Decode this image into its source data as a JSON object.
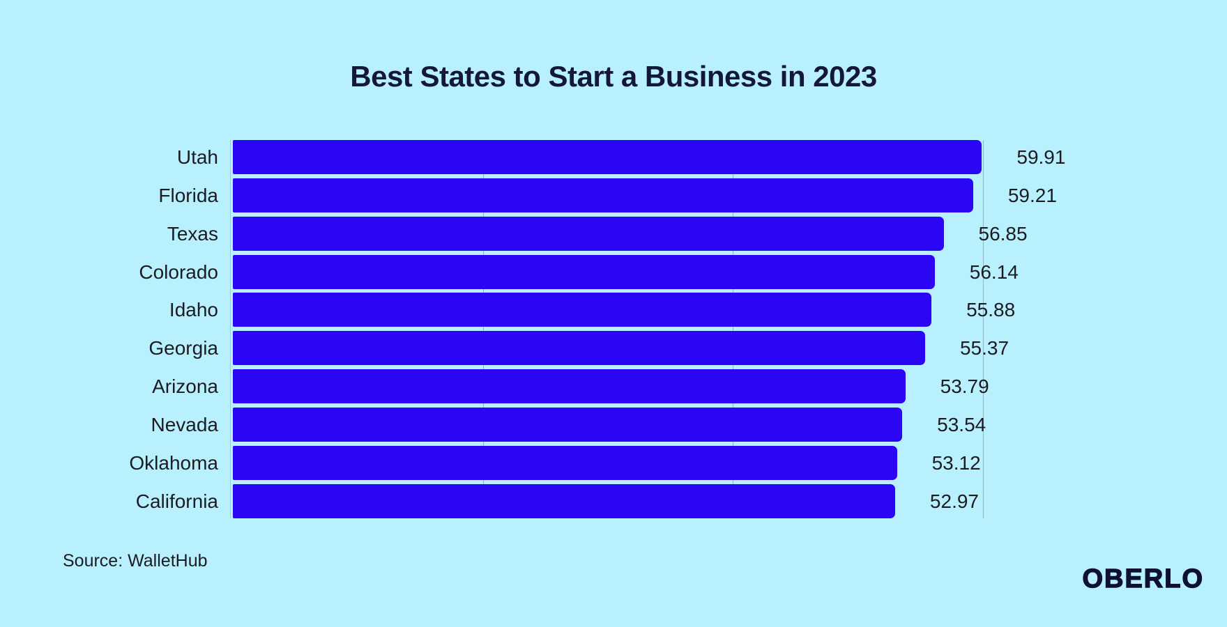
{
  "title": "Best States to Start a Business in 2023",
  "source": "Source: WalletHub",
  "logo": "OBERLO",
  "colors": {
    "background": "#b8f1fd",
    "bar": "#2a06f5",
    "title_text": "#14173a",
    "label_text": "#1b1b22",
    "gridline": "rgba(104,136,152,0.55)",
    "gridline_faint": "rgba(104,136,152,0.35)",
    "logo_text": "#0e1130"
  },
  "chart_data": {
    "type": "bar",
    "orientation": "horizontal",
    "title": "Best States to Start a Business in 2023",
    "categories": [
      "Utah",
      "Florida",
      "Texas",
      "Colorado",
      "Idaho",
      "Georgia",
      "Arizona",
      "Nevada",
      "Oklahoma",
      "California"
    ],
    "values": [
      59.91,
      59.21,
      56.85,
      56.14,
      55.88,
      55.37,
      53.79,
      53.54,
      53.12,
      52.97
    ],
    "xlabel": "",
    "ylabel": "",
    "xlim": [
      0,
      60
    ],
    "x_gridlines": [
      20,
      40,
      60
    ],
    "grid": "vertical-lines-behind-bars",
    "value_labels": "right-of-bar",
    "legend": "none",
    "source": "WalletHub"
  }
}
